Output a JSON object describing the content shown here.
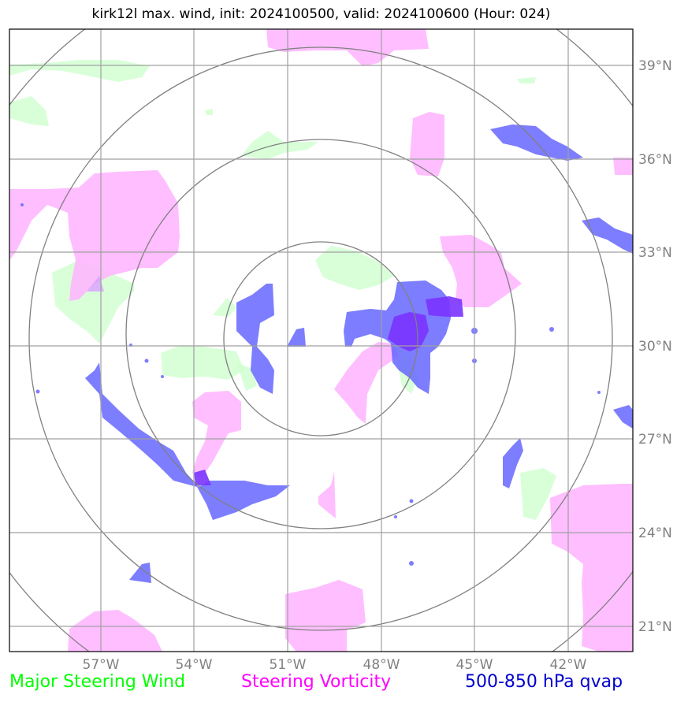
{
  "title": "kirk12l max. wind, init: 2024100500, valid: 2024100600 (Hour: 024)",
  "lat_labels": [
    "39°N",
    "36°N",
    "33°N",
    "30°N",
    "27°N",
    "24°N",
    "21°N"
  ],
  "lon_labels": [
    "57°W",
    "54°W",
    "51°W",
    "48°W",
    "45°W",
    "42°W"
  ],
  "legend": {
    "wind": "Major Steering Wind",
    "vorticity": "Steering Vorticity",
    "qvap": "500-850 hPa qvap"
  },
  "colors": {
    "wind": "#00ff00",
    "vorticity": "#ff00ff",
    "qvap": "#0000cc",
    "grid": "#a0a0a0",
    "rings": "#808080",
    "wind_fill": "#ccffcc",
    "vort_fill": "#ffb3ff",
    "qvap_fill": "#6666ff",
    "overlap_fill": "#7a33ff"
  }
}
